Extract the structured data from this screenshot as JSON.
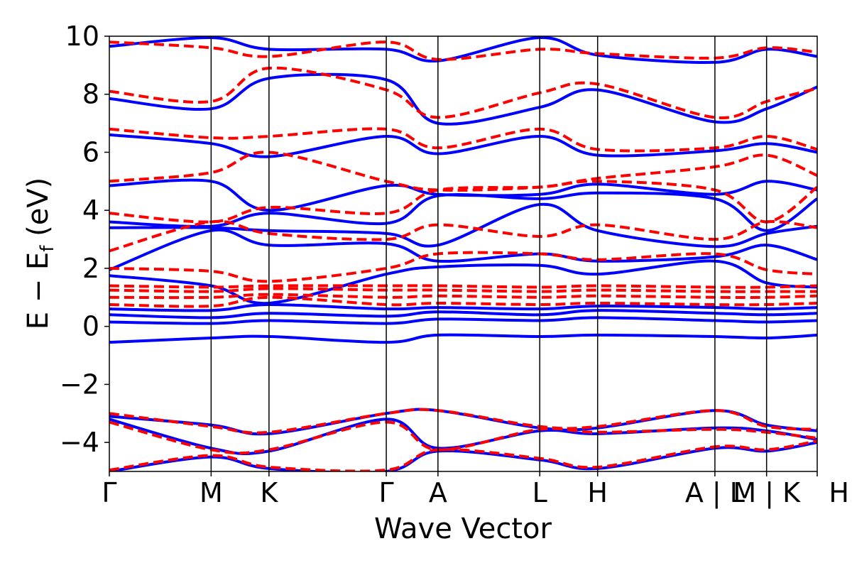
{
  "chart_data": {
    "type": "line",
    "title": "",
    "xlabel": "Wave Vector",
    "ylabel": {
      "main": "E − E",
      "sub": "f",
      "unit": " (eV)"
    },
    "ylim": [
      -5,
      10
    ],
    "yticks": [
      {
        "value": 10,
        "label": "10"
      },
      {
        "value": 8,
        "label": "8"
      },
      {
        "value": 6,
        "label": "6"
      },
      {
        "value": 4,
        "label": "4"
      },
      {
        "value": 2,
        "label": "2"
      },
      {
        "value": 0,
        "label": "0"
      },
      {
        "value": -2,
        "label": "−2"
      },
      {
        "value": -4,
        "label": "−4"
      }
    ],
    "xlim": [
      0,
      13.7
    ],
    "kpoints": [
      {
        "label": "Γ",
        "x": 0
      },
      {
        "label": "M",
        "x": 1.97
      },
      {
        "label": "K",
        "x": 3.09
      },
      {
        "label": "Γ",
        "x": 5.36
      },
      {
        "label": "A",
        "x": 6.36
      },
      {
        "label": "L",
        "x": 8.33
      },
      {
        "label": "H",
        "x": 9.45
      },
      {
        "label": "A | L",
        "x": 11.72
      },
      {
        "label": "M | K",
        "x": 12.72
      },
      {
        "label": "H",
        "x": 13.7
      }
    ],
    "grid": false,
    "legend": "none",
    "colors": {
      "series_a": "#0000ff",
      "series_b": "#ff0000"
    },
    "series": [
      {
        "style": "solid",
        "color": "#0000ff",
        "x": [
          0,
          1.97,
          3.09,
          5.36,
          6.36,
          8.33,
          9.45,
          11.72,
          12.72,
          13.7
        ],
        "y": [
          -0.55,
          -0.4,
          -0.35,
          -0.55,
          -0.3,
          -0.35,
          -0.3,
          -0.35,
          -0.4,
          -0.3
        ]
      },
      {
        "style": "solid",
        "color": "#0000ff",
        "x": [
          0,
          1.97,
          3.09,
          5.36,
          6.36,
          8.33,
          9.45,
          11.72,
          12.72,
          13.7
        ],
        "y": [
          0.15,
          0.1,
          0.2,
          0.1,
          0.25,
          0.2,
          0.3,
          0.2,
          0.15,
          0.2
        ]
      },
      {
        "style": "solid",
        "color": "#0000ff",
        "x": [
          0,
          1.97,
          3.09,
          5.36,
          6.36,
          8.33,
          9.45,
          11.72,
          12.72,
          13.7
        ],
        "y": [
          0.4,
          0.3,
          0.45,
          0.35,
          0.5,
          0.4,
          0.55,
          0.45,
          0.4,
          0.45
        ]
      },
      {
        "style": "solid",
        "color": "#0000ff",
        "x": [
          0,
          1.97,
          3.09,
          5.36,
          6.36,
          8.33,
          9.45,
          11.72,
          12.72,
          13.7
        ],
        "y": [
          0.6,
          0.55,
          0.75,
          0.6,
          0.65,
          0.6,
          0.7,
          0.65,
          0.6,
          0.65
        ]
      },
      {
        "style": "solid",
        "color": "#0000ff",
        "x": [
          0,
          1.97,
          3.09,
          5.36,
          6.36,
          8.33,
          9.45,
          11.72,
          12.72,
          13.7
        ],
        "y": [
          1.75,
          1.4,
          0.8,
          1.8,
          2.05,
          2.1,
          1.8,
          2.25,
          1.5,
          1.35
        ]
      },
      {
        "style": "solid",
        "color": "#0000ff",
        "x": [
          0,
          1.97,
          3.09,
          5.36,
          6.36,
          8.33,
          9.45,
          11.72,
          12.72,
          13.7
        ],
        "y": [
          1.95,
          3.3,
          2.8,
          2.85,
          2.25,
          2.5,
          2.25,
          2.4,
          2.8,
          2.3
        ]
      },
      {
        "style": "solid",
        "color": "#0000ff",
        "x": [
          0,
          1.97,
          3.09,
          5.36,
          6.36,
          8.33,
          9.45,
          11.72,
          12.72,
          13.7
        ],
        "y": [
          3.4,
          3.4,
          3.3,
          3.2,
          2.8,
          4.2,
          3.3,
          2.75,
          3.2,
          3.45
        ]
      },
      {
        "style": "solid",
        "color": "#0000ff",
        "x": [
          0,
          1.97,
          3.09,
          5.36,
          6.36,
          8.33,
          9.45,
          11.72,
          12.72,
          13.7
        ],
        "y": [
          3.6,
          3.45,
          3.9,
          3.55,
          4.5,
          4.4,
          4.6,
          4.4,
          3.3,
          4.4
        ]
      },
      {
        "style": "solid",
        "color": "#0000ff",
        "x": [
          0,
          1.97,
          3.09,
          5.36,
          6.36,
          8.33,
          9.45,
          11.72,
          12.72,
          13.7
        ],
        "y": [
          4.85,
          5.0,
          4.0,
          4.85,
          4.55,
          4.55,
          4.9,
          4.55,
          5.0,
          4.7
        ]
      },
      {
        "style": "solid",
        "color": "#0000ff",
        "x": [
          0,
          1.97,
          3.09,
          5.36,
          6.36,
          8.33,
          9.45,
          11.72,
          12.72,
          13.7
        ],
        "y": [
          6.6,
          6.3,
          5.85,
          6.55,
          5.95,
          6.55,
          5.9,
          6.05,
          6.3,
          6.0
        ]
      },
      {
        "style": "solid",
        "color": "#0000ff",
        "x": [
          0,
          1.97,
          3.09,
          5.36,
          6.36,
          8.33,
          9.45,
          11.72,
          12.72,
          13.7
        ],
        "y": [
          7.85,
          7.5,
          8.55,
          8.5,
          7.0,
          7.55,
          8.15,
          7.05,
          7.5,
          8.25
        ]
      },
      {
        "style": "solid",
        "color": "#0000ff",
        "x": [
          0,
          1.97,
          3.09,
          5.36,
          6.36,
          8.33,
          9.45,
          11.72,
          12.72,
          13.7
        ],
        "y": [
          9.65,
          9.95,
          9.55,
          9.55,
          9.15,
          9.95,
          9.35,
          9.1,
          9.55,
          9.3
        ]
      },
      {
        "style": "solid",
        "color": "#0000ff",
        "x": [
          0,
          1.97,
          3.09,
          5.36,
          6.36,
          8.33,
          9.45,
          11.72,
          12.72,
          13.7
        ],
        "y": [
          -3.1,
          -3.4,
          -3.7,
          -3.0,
          -2.9,
          -3.5,
          -3.5,
          -2.9,
          -3.4,
          -3.6
        ]
      },
      {
        "style": "solid",
        "color": "#0000ff",
        "x": [
          0,
          1.97,
          3.09,
          5.36,
          6.36,
          8.33,
          9.45,
          11.72,
          12.72,
          13.7
        ],
        "y": [
          -3.2,
          -4.2,
          -4.3,
          -3.2,
          -4.2,
          -3.6,
          -3.7,
          -3.5,
          -3.6,
          -3.9
        ]
      },
      {
        "style": "solid",
        "color": "#0000ff",
        "x": [
          0,
          1.97,
          3.09,
          5.36,
          6.36,
          8.33,
          9.45,
          11.72,
          12.72,
          13.7
        ],
        "y": [
          -5.0,
          -4.5,
          -4.9,
          -5.0,
          -4.3,
          -4.6,
          -4.9,
          -4.2,
          -4.3,
          -4.0
        ]
      },
      {
        "style": "dashed",
        "color": "#ff0000",
        "x": [
          0,
          1.97,
          3.09,
          5.36,
          6.36,
          8.33,
          9.45,
          11.72,
          12.72,
          13.7
        ],
        "y": [
          0.75,
          0.7,
          1.0,
          0.75,
          0.8,
          0.75,
          0.8,
          0.75,
          0.75,
          0.8
        ]
      },
      {
        "style": "dashed",
        "color": "#ff0000",
        "x": [
          0,
          1.97,
          3.09,
          5.36,
          6.36,
          8.33,
          9.45,
          11.72,
          12.72,
          13.7
        ],
        "y": [
          1.0,
          1.0,
          1.1,
          1.0,
          1.05,
          1.0,
          1.05,
          1.0,
          1.0,
          1.05
        ]
      },
      {
        "style": "dashed",
        "color": "#ff0000",
        "x": [
          0,
          1.97,
          3.09,
          5.36,
          6.36,
          8.33,
          9.45,
          11.72,
          12.72,
          13.7
        ],
        "y": [
          1.25,
          1.2,
          1.3,
          1.25,
          1.25,
          1.2,
          1.25,
          1.2,
          1.2,
          1.2
        ]
      },
      {
        "style": "dashed",
        "color": "#ff0000",
        "x": [
          0,
          1.97,
          3.09,
          5.36,
          6.36,
          8.33,
          9.45,
          11.72,
          12.72,
          13.7
        ],
        "y": [
          1.4,
          1.35,
          1.4,
          1.4,
          1.4,
          1.35,
          1.4,
          1.35,
          1.35,
          1.4
        ]
      },
      {
        "style": "dashed",
        "color": "#ff0000",
        "x": [
          0,
          1.97,
          3.09,
          5.36,
          6.36,
          8.33,
          9.45,
          11.72,
          12.72,
          13.7
        ],
        "y": [
          2.0,
          1.9,
          1.55,
          2.0,
          2.5,
          2.5,
          2.3,
          2.5,
          1.95,
          1.8
        ]
      },
      {
        "style": "dashed",
        "color": "#ff0000",
        "x": [
          0,
          1.97,
          3.09,
          5.36,
          6.36,
          8.33,
          9.45,
          11.72,
          12.72,
          13.7
        ],
        "y": [
          2.6,
          3.6,
          3.2,
          3.0,
          3.5,
          3.1,
          3.5,
          3.0,
          3.6,
          3.4
        ]
      },
      {
        "style": "dashed",
        "color": "#ff0000",
        "x": [
          0,
          1.97,
          3.09,
          5.36,
          6.36,
          8.33,
          9.45,
          11.72,
          12.72,
          13.7
        ],
        "y": [
          3.9,
          3.6,
          4.1,
          3.9,
          4.7,
          4.8,
          5.0,
          4.7,
          3.6,
          4.8
        ]
      },
      {
        "style": "dashed",
        "color": "#ff0000",
        "x": [
          0,
          1.97,
          3.09,
          5.36,
          6.36,
          8.33,
          9.45,
          11.72,
          12.72,
          13.7
        ],
        "y": [
          5.0,
          5.3,
          6.0,
          5.0,
          4.7,
          4.8,
          5.1,
          5.5,
          5.9,
          5.2
        ]
      },
      {
        "style": "dashed",
        "color": "#ff0000",
        "x": [
          0,
          1.97,
          3.09,
          5.36,
          6.36,
          8.33,
          9.45,
          11.72,
          12.72,
          13.7
        ],
        "y": [
          6.8,
          6.5,
          6.55,
          6.8,
          6.15,
          6.8,
          6.1,
          6.15,
          6.55,
          6.1
        ]
      },
      {
        "style": "dashed",
        "color": "#ff0000",
        "x": [
          0,
          1.97,
          3.09,
          5.36,
          6.36,
          8.33,
          9.45,
          11.72,
          12.72,
          13.7
        ],
        "y": [
          8.1,
          7.75,
          8.9,
          8.15,
          7.2,
          8.05,
          8.35,
          7.2,
          7.75,
          8.2
        ]
      },
      {
        "style": "dashed",
        "color": "#ff0000",
        "x": [
          0,
          1.97,
          3.09,
          5.36,
          6.36,
          8.33,
          9.45,
          11.72,
          12.72,
          13.7
        ],
        "y": [
          9.8,
          9.6,
          9.3,
          9.8,
          9.2,
          9.55,
          9.4,
          9.25,
          9.6,
          9.45
        ]
      },
      {
        "style": "dashed",
        "color": "#ff0000",
        "x": [
          0,
          1.97,
          3.09,
          5.36,
          6.36,
          8.33,
          9.45,
          11.72,
          12.72,
          13.7
        ],
        "y": [
          -3.0,
          -3.45,
          -3.65,
          -3.0,
          -2.9,
          -3.45,
          -3.45,
          -2.9,
          -3.45,
          -3.55
        ]
      },
      {
        "style": "dashed",
        "color": "#ff0000",
        "x": [
          0,
          1.97,
          3.09,
          5.36,
          6.36,
          8.33,
          9.45,
          11.72,
          12.72,
          13.7
        ],
        "y": [
          -3.3,
          -4.25,
          -4.25,
          -3.3,
          -4.25,
          -3.55,
          -3.65,
          -3.55,
          -3.65,
          -3.85
        ]
      },
      {
        "style": "dashed",
        "color": "#ff0000",
        "x": [
          0,
          1.97,
          3.09,
          5.36,
          6.36,
          8.33,
          9.45,
          11.72,
          12.72,
          13.7
        ],
        "y": [
          -4.95,
          -4.45,
          -4.85,
          -4.95,
          -4.25,
          -4.55,
          -4.85,
          -4.15,
          -4.25,
          -3.95
        ]
      }
    ]
  }
}
